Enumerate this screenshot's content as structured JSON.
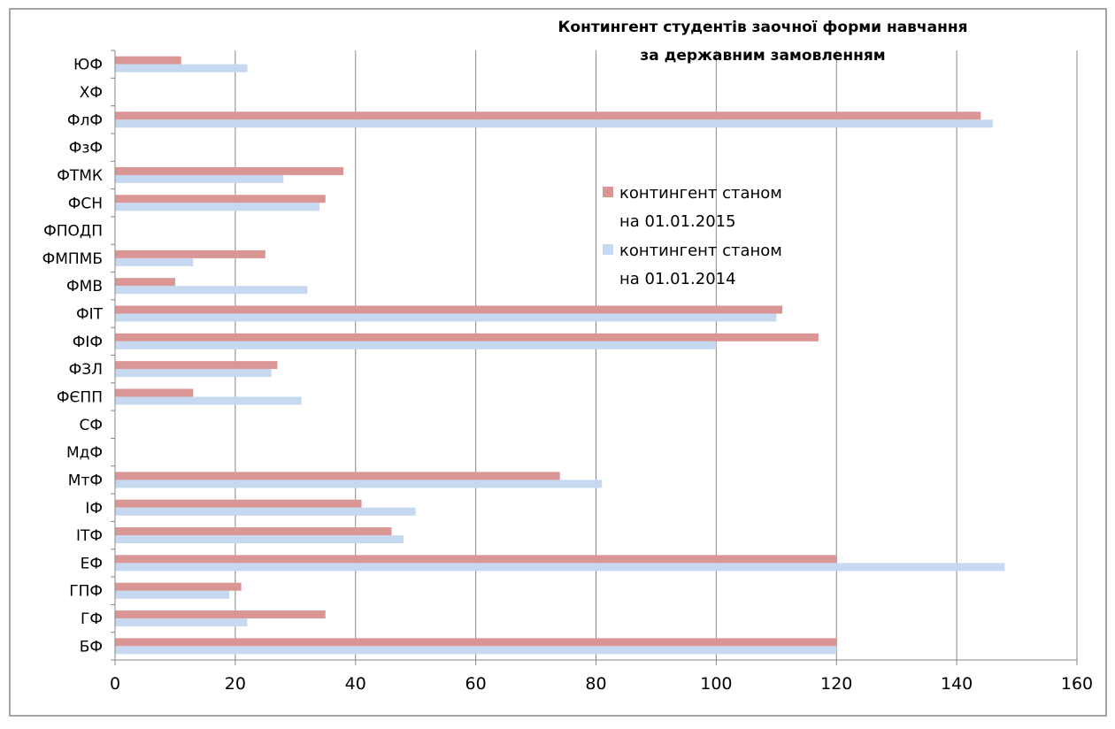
{
  "chart_data": {
    "type": "bar",
    "orientation": "horizontal",
    "title_line1": "Контингент студентів заочної форми навчання",
    "title_line2": "за державним замовленням",
    "xlabel": "",
    "ylabel": "",
    "xlim": [
      0,
      160
    ],
    "x_ticks": [
      0,
      20,
      40,
      60,
      80,
      100,
      120,
      140,
      160
    ],
    "grid": true,
    "legend_position": "right-center",
    "categories": [
      "ЮФ",
      "ХФ",
      "ФлФ",
      "ФзФ",
      "ФТМК",
      "ФСН",
      "ФПОДП",
      "ФМПМБ",
      "ФМВ",
      "ФІТ",
      "ФІФ",
      "ФЗЛ",
      "ФЄПП",
      "СФ",
      "МдФ",
      "МтФ",
      "ІФ",
      "ІТФ",
      "ЕФ",
      "ГПФ",
      "ГФ",
      "БФ"
    ],
    "series": [
      {
        "legend_line1": "контингент станом",
        "legend_line2": "на 01.01.2015",
        "color": "#d99694",
        "values": [
          11,
          0,
          144,
          0,
          38,
          35,
          0,
          25,
          10,
          111,
          117,
          27,
          13,
          0,
          0,
          74,
          41,
          46,
          120,
          21,
          35,
          120
        ]
      },
      {
        "legend_line1": "контингент станом",
        "legend_line2": "на 01.01.2014",
        "color": "#c6d9f1",
        "values": [
          22,
          0,
          146,
          0,
          28,
          34,
          0,
          13,
          32,
          110,
          100,
          26,
          31,
          0,
          0,
          81,
          50,
          48,
          148,
          19,
          22,
          120
        ]
      }
    ],
    "colors": {
      "gridline": "#878787",
      "axis": "#878787",
      "text": "#000000",
      "frame": "#878787"
    }
  }
}
